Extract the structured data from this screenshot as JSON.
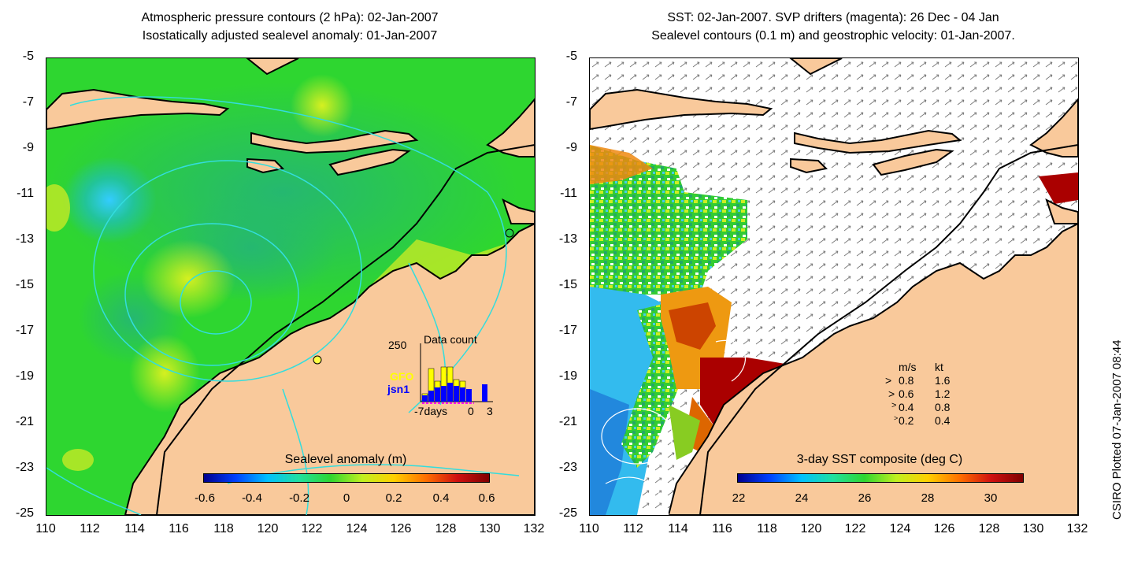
{
  "left_panel": {
    "title_line1": "Atmospheric pressure contours (2 hPa): 02-Jan-2007",
    "title_line2": "Isostatically adjusted sealevel anomaly: 01-Jan-2007",
    "colorbar_label": "Sealevel anomaly (m)",
    "colorbar_ticks": [
      "-0.6",
      "-0.4",
      "-0.2",
      "0",
      "0.2",
      "0.4",
      "0.6"
    ],
    "inset": {
      "title": "Data count",
      "ymax_label": "250",
      "series_gfo": "GFO",
      "series_jsn1": "jsn1",
      "xlabel_left": "-7days",
      "xlabel_mid": "0",
      "xlabel_right": "3",
      "gfo_color": "#ffff00",
      "jsn1_color": "#0000ff"
    }
  },
  "right_panel": {
    "title_line1": "SST: 02-Jan-2007. SVP drifters (magenta): 26 Dec - 04 Jan",
    "title_line2": "Sealevel contours (0.1 m) and geostrophic velocity: 01-Jan-2007.",
    "colorbar_label": "3-day SST composite (deg C)",
    "colorbar_ticks": [
      "22",
      "24",
      "26",
      "28",
      "30"
    ],
    "velocity_legend": {
      "header_ms": "m/s",
      "header_kt": "kt",
      "rows": [
        {
          "ms": "0.8",
          "kt": "1.6"
        },
        {
          "ms": "0.6",
          "kt": "1.2"
        },
        {
          "ms": "0.4",
          "kt": "0.8"
        },
        {
          "ms": "0.2",
          "kt": "0.4"
        }
      ]
    }
  },
  "y_ticks": [
    "-5",
    "-7",
    "-9",
    "-11",
    "-13",
    "-15",
    "-17",
    "-19",
    "-21",
    "-23",
    "-25"
  ],
  "x_ticks": [
    "110",
    "112",
    "114",
    "116",
    "118",
    "120",
    "122",
    "124",
    "126",
    "128",
    "130",
    "132"
  ],
  "stamp": "CSIRO Plotted 07-Jan-2007 08:44",
  "colors": {
    "land": "#f9c99b",
    "sea_green": "#22d622",
    "contour": "#33dddd"
  }
}
